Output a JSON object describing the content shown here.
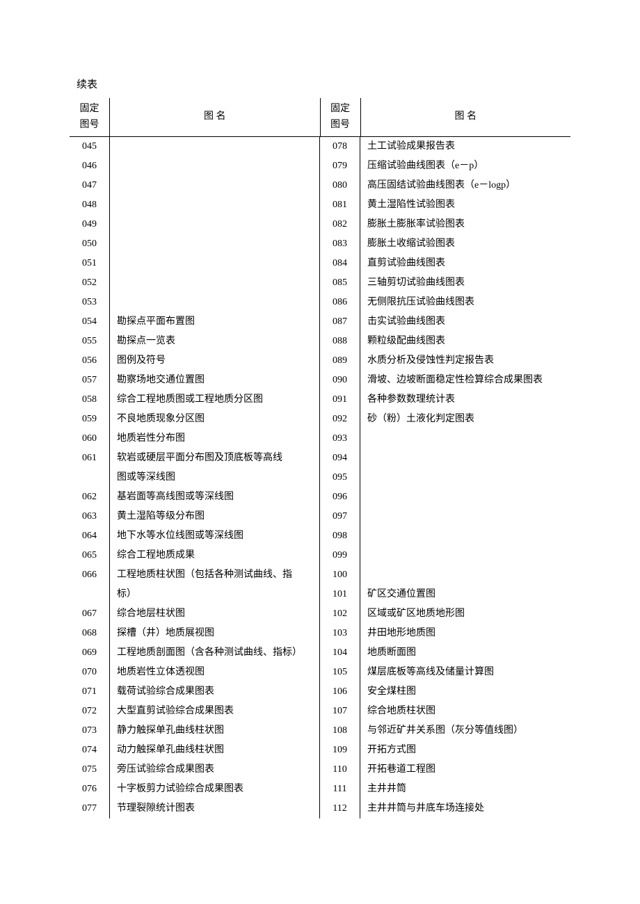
{
  "continuationLabel": "续表",
  "headers": {
    "idLine1": "固定",
    "idLine2": "图号",
    "name": "图          名"
  },
  "leftRows": [
    {
      "code": "045",
      "name": ""
    },
    {
      "code": "046",
      "name": ""
    },
    {
      "code": "047",
      "name": ""
    },
    {
      "code": "048",
      "name": ""
    },
    {
      "code": "049",
      "name": ""
    },
    {
      "code": "050",
      "name": ""
    },
    {
      "code": "051",
      "name": ""
    },
    {
      "code": "052",
      "name": ""
    },
    {
      "code": "053",
      "name": ""
    },
    {
      "code": "054",
      "name": "勘探点平面布置图"
    },
    {
      "code": "055",
      "name": "勘探点一览表"
    },
    {
      "code": "056",
      "name": "图例及符号"
    },
    {
      "code": "057",
      "name": "勘察场地交通位置图"
    },
    {
      "code": "058",
      "name": "综合工程地质图或工程地质分区图"
    },
    {
      "code": "059",
      "name": "不良地质现象分区图"
    },
    {
      "code": "060",
      "name": "地质岩性分布图"
    },
    {
      "code": "061",
      "name": "软岩或硬层平面分布图及顶底板等高线"
    },
    {
      "code": "",
      "name": "图或等深线图"
    },
    {
      "code": "062",
      "name": "基岩面等高线图或等深线图"
    },
    {
      "code": "063",
      "name": "黄土湿陷等级分布图"
    },
    {
      "code": "064",
      "name": "地下水等水位线图或等深线图"
    },
    {
      "code": "065",
      "name": "综合工程地质成果"
    },
    {
      "code": "066",
      "name": "工程地质柱状图（包括各种测试曲线、指"
    },
    {
      "code": "",
      "name": "标）"
    },
    {
      "code": "067",
      "name": "综合地层柱状图"
    },
    {
      "code": "068",
      "name": "探槽（井）地质展视图"
    },
    {
      "code": "069",
      "name": "工程地质剖面图（含各种测试曲线、指标）"
    },
    {
      "code": "070",
      "name": "地质岩性立体透视图"
    },
    {
      "code": "071",
      "name": "载荷试验综合成果图表"
    },
    {
      "code": "072",
      "name": "大型直剪试验综合成果图表"
    },
    {
      "code": "073",
      "name": "静力触探单孔曲线柱状图"
    },
    {
      "code": "074",
      "name": "动力触探单孔曲线柱状图"
    },
    {
      "code": "075",
      "name": "旁压试验综合成果图表"
    },
    {
      "code": "076",
      "name": "十字板剪力试验综合成果图表"
    },
    {
      "code": "077",
      "name": "节理裂隙统计图表"
    }
  ],
  "rightRows": [
    {
      "code": "078",
      "name": "土工试验成果报告表"
    },
    {
      "code": "079",
      "name": "压缩试验曲线图表（e－p）"
    },
    {
      "code": "080",
      "name": "高压固结试验曲线图表（e－logp）"
    },
    {
      "code": "081",
      "name": "黄土湿陷性试验图表"
    },
    {
      "code": "082",
      "name": "膨胀土膨胀率试验图表"
    },
    {
      "code": "083",
      "name": "膨胀土收缩试验图表"
    },
    {
      "code": "084",
      "name": "直剪试验曲线图表"
    },
    {
      "code": "085",
      "name": "三轴剪切试验曲线图表"
    },
    {
      "code": "086",
      "name": "无侧限抗压试验曲线图表"
    },
    {
      "code": "087",
      "name": "击实试验曲线图表"
    },
    {
      "code": "088",
      "name": "颗粒级配曲线图表"
    },
    {
      "code": "089",
      "name": "水质分析及侵蚀性判定报告表"
    },
    {
      "code": "090",
      "name": "滑坡、边坡断面稳定性检算综合成果图表"
    },
    {
      "code": "091",
      "name": "各种参数数理统计表"
    },
    {
      "code": "092",
      "name": "砂（粉）土液化判定图表"
    },
    {
      "code": "093",
      "name": ""
    },
    {
      "code": "094",
      "name": ""
    },
    {
      "code": "095",
      "name": ""
    },
    {
      "code": "096",
      "name": ""
    },
    {
      "code": "097",
      "name": ""
    },
    {
      "code": "098",
      "name": ""
    },
    {
      "code": "099",
      "name": ""
    },
    {
      "code": "100",
      "name": ""
    },
    {
      "code": "101",
      "name": "矿区交通位置图"
    },
    {
      "code": "102",
      "name": "区域或矿区地质地形图"
    },
    {
      "code": "103",
      "name": "井田地形地质图"
    },
    {
      "code": "104",
      "name": "地质断面图"
    },
    {
      "code": "105",
      "name": "煤层底板等高线及储量计算图"
    },
    {
      "code": "106",
      "name": "安全煤柱图"
    },
    {
      "code": "107",
      "name": "综合地质柱状图"
    },
    {
      "code": "108",
      "name": "与邻近矿井关系图（灰分等值线图）"
    },
    {
      "code": "109",
      "name": "开拓方式图"
    },
    {
      "code": "110",
      "name": "开拓巷道工程图"
    },
    {
      "code": "111",
      "name": "主井井筒"
    },
    {
      "code": "112",
      "name": "主井井筒与井底车场连接处"
    }
  ],
  "styling": {
    "fontSize": 14,
    "lineHeight": 28,
    "textColor": "#000000",
    "backgroundColor": "#ffffff",
    "borderColor": "#000000",
    "outerBorderWidth": 2,
    "innerBorderWidth": 1,
    "idColumnWidth": 58,
    "pagePaddingTop": 110,
    "pagePaddingSide": 100
  }
}
